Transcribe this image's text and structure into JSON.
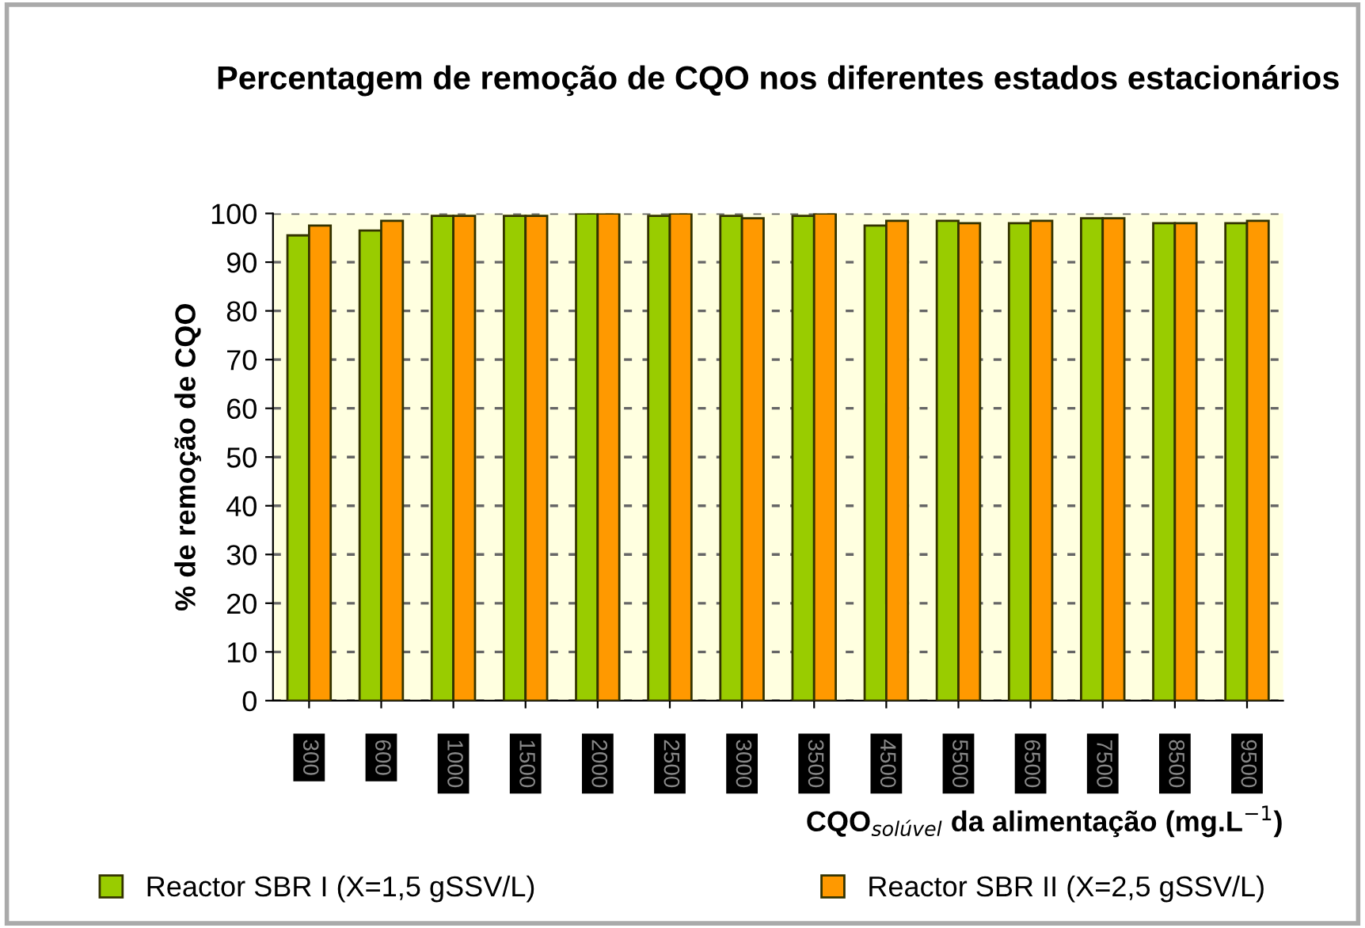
{
  "chart_data": {
    "type": "bar",
    "title": "Percentagem de remoção de CQO nos diferentes estados estacionários",
    "xlabel": "CQO$_{solúvel}$ da alimentação (mg.L$^{−1}$)",
    "ylabel": "% de remoção de CQO",
    "categories": [
      "300",
      "600",
      "1000",
      "1500",
      "2000",
      "2500",
      "3000",
      "3500",
      "4500",
      "5500",
      "6500",
      "7500",
      "8500",
      "9500"
    ],
    "series": [
      {
        "name": "Reactor SBR I (X=1,5 gSSV/L)",
        "color": "#99cc00",
        "values": [
          95.5,
          96.5,
          99.5,
          99.5,
          100,
          99.5,
          99.5,
          99.5,
          97.5,
          98.5,
          98,
          99,
          98,
          98
        ]
      },
      {
        "name": "Reactor SBR II (X=2,5 gSSV/L)",
        "color": "#ff9900",
        "values": [
          97.5,
          98.5,
          99.5,
          99.5,
          100,
          100,
          99,
          100,
          98.5,
          98,
          98.5,
          99,
          98,
          98.5
        ]
      }
    ],
    "ylim": [
      0,
      100
    ],
    "yticks": [
      0,
      10,
      20,
      30,
      40,
      50,
      60,
      70,
      80,
      90,
      100
    ],
    "grid": "y",
    "legend": "bottom"
  }
}
